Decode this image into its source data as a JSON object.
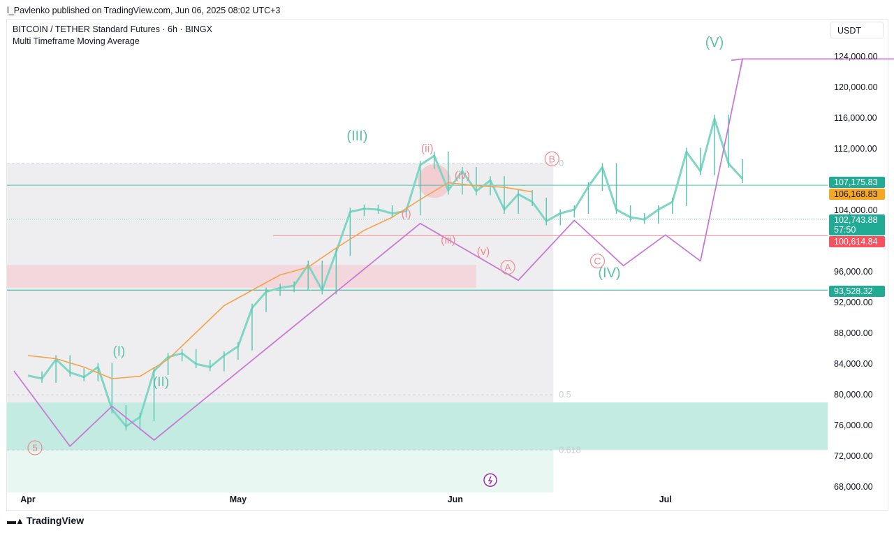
{
  "header": {
    "published": "l_Pavlenko published on TradingView.com, Jun 06, 2025 08:02 UTC+3",
    "symbol": "BITCOIN / TETHER Standard Futures · 6h · BINGX",
    "indicator": "Multi Timeframe Moving Average",
    "currency": "USDT"
  },
  "footer": {
    "brand": "TradingView"
  },
  "chart_data": {
    "type": "line",
    "x_tick_labels": [
      "Apr",
      "May",
      "Jun",
      "Jul"
    ],
    "y_tick_labels": [
      "124,000.00",
      "120,000.00",
      "116,000.00",
      "112,000.00",
      "108,000.00",
      "104,000.00",
      "100,000.00",
      "96,000.00",
      "92,000.00",
      "88,000.00",
      "84,000.00",
      "80,000.00",
      "76,000.00",
      "72,000.00",
      "68,000.00"
    ],
    "ylim": [
      67000,
      127000
    ],
    "price_tags": [
      {
        "label": "107,175.83",
        "value": 107175.83,
        "color": "#22ab94"
      },
      {
        "label": "106,168.83",
        "value": 106168.83,
        "color": "#f5a623"
      },
      {
        "label": "102,743.88",
        "sub": "57:50",
        "value": 102743.88,
        "color": "#22ab94"
      },
      {
        "label": "100,614.84",
        "value": 100614.84,
        "color": "#f7525f"
      },
      {
        "label": "93,528.32",
        "value": 93528.32,
        "color": "#22ab94"
      }
    ],
    "fib_labels": [
      "0",
      "0.5",
      "0.618"
    ],
    "wave_labels": {
      "primary": [
        "(I)",
        "(II)",
        "(III)",
        "(IV)",
        "(V)"
      ],
      "minor": [
        "(i)",
        "(ii)",
        "(iii)",
        "(iv)",
        "(v)"
      ],
      "abc": [
        "A",
        "B",
        "C"
      ],
      "prior": "5"
    },
    "series": [
      {
        "name": "price",
        "color": "#7fd6c4",
        "x": [
          0,
          2,
          4,
          6,
          8,
          10,
          12,
          14,
          16,
          18,
          20,
          22,
          24,
          26,
          28,
          30,
          32,
          34,
          36,
          38,
          40,
          42,
          44,
          46,
          48,
          50,
          52,
          54,
          56,
          58,
          60,
          62,
          64,
          66,
          68,
          70,
          72,
          74,
          76,
          78,
          80,
          82,
          84,
          86,
          88,
          90,
          92,
          94,
          96,
          98,
          100,
          102
        ],
        "y": [
          82400,
          82000,
          84500,
          82800,
          82200,
          83500,
          78000,
          75800,
          77000,
          83000,
          84800,
          85300,
          83900,
          83500,
          85000,
          86200,
          91200,
          93300,
          93800,
          94100,
          96800,
          93500,
          98500,
          103700,
          104100,
          104000,
          103500,
          103800,
          109800,
          111000,
          106500,
          109000,
          106400,
          107800,
          104000,
          106000,
          105000,
          102500,
          103500,
          104000,
          107000,
          109500,
          104000,
          103000,
          102700,
          104000,
          105000,
          111500,
          109000,
          115800,
          110000,
          108000
        ]
      },
      {
        "name": "moving-average",
        "color": "#f5a24a",
        "x": [
          0,
          4,
          8,
          12,
          16,
          20,
          24,
          28,
          32,
          36,
          40,
          44,
          48,
          52,
          56,
          60,
          64,
          68,
          72
        ],
        "y": [
          85000,
          84600,
          83500,
          82000,
          82300,
          84500,
          88000,
          91500,
          93500,
          95500,
          96500,
          99000,
          101300,
          103000,
          105300,
          107500,
          107100,
          106900,
          106300
        ]
      },
      {
        "name": "projection",
        "color": "#c77ad3",
        "x": [
          -2,
          6,
          12,
          18,
          56,
          70,
          78,
          85,
          91,
          96,
          102,
          131
        ],
        "y": [
          83000,
          73200,
          78400,
          74000,
          102200,
          94800,
          102600,
          96700,
          100700,
          97300,
          123600,
          123600
        ]
      }
    ]
  }
}
